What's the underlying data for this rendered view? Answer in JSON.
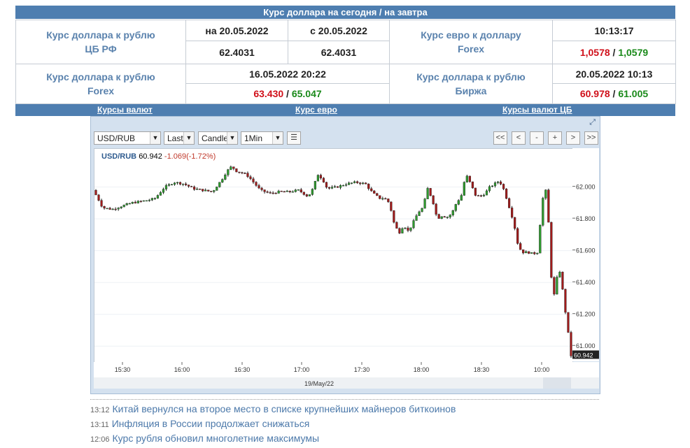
{
  "header": {
    "title": "Курс доллара на сегодня / на завтра"
  },
  "rates": {
    "cbr_label_1": "Курс доллара к рублю",
    "cbr_label_2": "ЦБ РФ",
    "cbr_date_today": "на 20.05.2022",
    "cbr_date_tomorrow": "с 20.05.2022",
    "cbr_value_today": "62.4031",
    "cbr_value_tomorrow": "62.4031",
    "eurusd_label_1": "Курс евро к доллару",
    "eurusd_label_2": "Forex",
    "eurusd_time": "10:13:17",
    "eurusd_bid": "1,0578",
    "eurusd_ask": "1,0579",
    "forex_label_1": "Курс доллара к рублю",
    "forex_label_2": "Forex",
    "forex_datetime": "16.05.2022 20:22",
    "forex_bid": "63.430",
    "forex_ask": "65.047",
    "exchange_label_1": "Курс доллара к рублю",
    "exchange_label_2": "Биржа",
    "exchange_datetime": "20.05.2022 10:13",
    "exchange_bid": "60.978",
    "exchange_ask": "61.005",
    "separator": " / "
  },
  "nav": {
    "currencies": "Курсы валют",
    "euro": "Курс евро",
    "cbr": "Курсы валют ЦБ"
  },
  "toolbar": {
    "symbol": "USD/RUB",
    "price_type": "Last",
    "chart_style": "Candle",
    "interval": "1Min",
    "nav_buttons": [
      "<<",
      "<",
      "-",
      "+",
      ">",
      ">>"
    ]
  },
  "chart_data": {
    "type": "candlestick",
    "symbol": "USD/RUB",
    "last": "60.942",
    "change": "-1.069(-1.72%)",
    "y_ticks": [
      "62.000",
      "61.800",
      "61.600",
      "61.400",
      "61.200",
      "61.000"
    ],
    "ylim": [
      60.9,
      62.24
    ],
    "x_ticks": [
      "15:30",
      "16:00",
      "16:30",
      "17:00",
      "17:30",
      "18:00",
      "18:30",
      "10:00"
    ],
    "x_date": "19/May/22",
    "last_label": "60.942",
    "close_path": [
      [
        0,
        61.98
      ],
      [
        0.01,
        61.93
      ],
      [
        0.02,
        61.87
      ],
      [
        0.04,
        61.86
      ],
      [
        0.06,
        61.88
      ],
      [
        0.08,
        61.9
      ],
      [
        0.1,
        61.91
      ],
      [
        0.12,
        61.92
      ],
      [
        0.13,
        61.93
      ],
      [
        0.15,
        62.0
      ],
      [
        0.17,
        62.03
      ],
      [
        0.19,
        62.02
      ],
      [
        0.21,
        61.99
      ],
      [
        0.23,
        61.98
      ],
      [
        0.25,
        61.97
      ],
      [
        0.27,
        62.05
      ],
      [
        0.28,
        62.1
      ],
      [
        0.29,
        62.13
      ],
      [
        0.3,
        62.1
      ],
      [
        0.32,
        62.08
      ],
      [
        0.33,
        62.05
      ],
      [
        0.35,
        61.98
      ],
      [
        0.37,
        61.96
      ],
      [
        0.39,
        61.97
      ],
      [
        0.41,
        61.97
      ],
      [
        0.43,
        61.98
      ],
      [
        0.45,
        61.94
      ],
      [
        0.46,
        61.99
      ],
      [
        0.47,
        62.08
      ],
      [
        0.48,
        62.05
      ],
      [
        0.49,
        61.99
      ],
      [
        0.51,
        62.0
      ],
      [
        0.53,
        62.02
      ],
      [
        0.55,
        62.03
      ],
      [
        0.57,
        62.02
      ],
      [
        0.58,
        61.98
      ],
      [
        0.59,
        61.95
      ],
      [
        0.6,
        61.93
      ],
      [
        0.61,
        61.93
      ],
      [
        0.62,
        61.9
      ],
      [
        0.63,
        61.77
      ],
      [
        0.64,
        61.71
      ],
      [
        0.65,
        61.76
      ],
      [
        0.66,
        61.72
      ],
      [
        0.67,
        61.78
      ],
      [
        0.68,
        61.84
      ],
      [
        0.69,
        61.87
      ],
      [
        0.7,
        61.99
      ],
      [
        0.71,
        61.92
      ],
      [
        0.72,
        61.8
      ],
      [
        0.73,
        61.82
      ],
      [
        0.74,
        61.81
      ],
      [
        0.75,
        61.83
      ],
      [
        0.76,
        61.9
      ],
      [
        0.77,
        61.94
      ],
      [
        0.78,
        62.08
      ],
      [
        0.79,
        62.02
      ],
      [
        0.8,
        61.95
      ],
      [
        0.81,
        61.94
      ],
      [
        0.82,
        61.96
      ],
      [
        0.83,
        62.0
      ],
      [
        0.84,
        62.02
      ],
      [
        0.85,
        62.04
      ],
      [
        0.86,
        61.98
      ],
      [
        0.87,
        61.88
      ],
      [
        0.88,
        61.78
      ],
      [
        0.89,
        61.62
      ],
      [
        0.9,
        61.59
      ],
      [
        0.91,
        61.59
      ],
      [
        0.92,
        61.58
      ],
      [
        0.93,
        61.59
      ],
      [
        0.94,
        61.92
      ],
      [
        0.95,
        62.0
      ],
      [
        0.955,
        61.62
      ],
      [
        0.96,
        61.38
      ],
      [
        0.965,
        61.32
      ],
      [
        0.97,
        61.42
      ],
      [
        0.975,
        61.49
      ],
      [
        0.98,
        61.42
      ],
      [
        0.985,
        61.28
      ],
      [
        0.99,
        61.18
      ],
      [
        0.995,
        61.06
      ],
      [
        1.0,
        60.94
      ]
    ]
  },
  "news": [
    {
      "time": "13:12",
      "title": "Китай вернулся на второе место в списке крупнейших майнеров биткоинов"
    },
    {
      "time": "13:11",
      "title": "Инфляция в России продолжает снижаться"
    },
    {
      "time": "12:06",
      "title": "Курс рубля обновил многолетние максимумы"
    }
  ]
}
